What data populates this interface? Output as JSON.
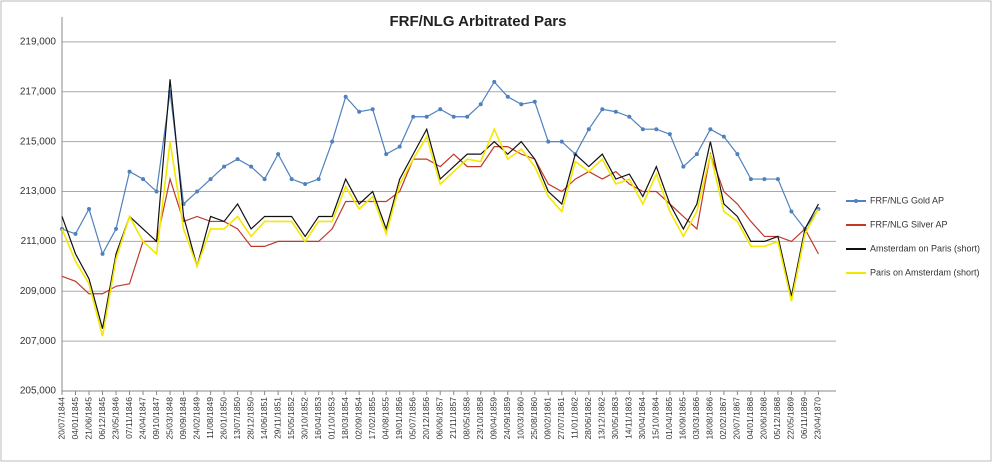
{
  "chart_data": {
    "type": "line",
    "title": "FRF/NLG Arbitrated Pars",
    "categories": [
      "20/07/1844",
      "04/01/1845",
      "21/06/1845",
      "06/12/1845",
      "23/05/1846",
      "07/11/1846",
      "24/04/1847",
      "09/10/1847",
      "25/03/1848",
      "09/09/1848",
      "24/02/1849",
      "11/08/1849",
      "26/01/1850",
      "13/07/1850",
      "28/12/1850",
      "14/06/1851",
      "29/11/1851",
      "15/05/1852",
      "30/10/1852",
      "16/04/1853",
      "01/10/1853",
      "18/03/1854",
      "02/09/1854",
      "17/02/1855",
      "04/08/1855",
      "19/01/1856",
      "05/07/1856",
      "20/12/1856",
      "06/06/1857",
      "21/11/1857",
      "08/05/1858",
      "23/10/1858",
      "09/04/1859",
      "24/09/1859",
      "10/03/1860",
      "25/08/1860",
      "09/02/1861",
      "27/07/1861",
      "11/01/1862",
      "28/06/1862",
      "13/12/1862",
      "30/05/1863",
      "14/11/1863",
      "30/04/1864",
      "15/10/1864",
      "01/04/1865",
      "16/09/1865",
      "03/03/1866",
      "18/08/1866",
      "02/02/1867",
      "20/07/1867",
      "04/01/1868",
      "20/06/1868",
      "05/12/1868",
      "22/05/1869",
      "06/11/1869",
      "23/04/1870"
    ],
    "series": [
      {
        "name": "FRF/NLG Gold AP",
        "color": "#4f81bd",
        "markers": true,
        "values": [
          211.5,
          211.3,
          212.3,
          210.5,
          211.5,
          213.8,
          213.5,
          213,
          217,
          212.5,
          213,
          213.5,
          214,
          214.3,
          214,
          213.5,
          214.5,
          213.5,
          213.3,
          213.5,
          215,
          216.8,
          216.2,
          216.3,
          214.5,
          214.8,
          216,
          216,
          216.3,
          216,
          216,
          216.5,
          217.4,
          216.8,
          216.5,
          216.6,
          215,
          215,
          214.5,
          215.5,
          216.3,
          216.2,
          216,
          215.5,
          215.5,
          215.3,
          214,
          214.5,
          215.5,
          215.2,
          214.5,
          213.5,
          213.5,
          213.5,
          212.2,
          211.5,
          212.3
        ]
      },
      {
        "name": "FRF/NLG Silver AP",
        "color": "#c0392b",
        "markers": false,
        "values": [
          209.6,
          209.4,
          208.9,
          208.9,
          209.2,
          209.3,
          211,
          211,
          213.5,
          211.8,
          212,
          211.8,
          211.8,
          211.5,
          210.8,
          210.8,
          211,
          211,
          211,
          211,
          211.5,
          212.6,
          212.6,
          212.6,
          212.6,
          213,
          214.3,
          214.3,
          214,
          214.5,
          214,
          214,
          214.8,
          214.8,
          214.5,
          214.3,
          213.3,
          213,
          213.5,
          213.8,
          213.5,
          213.8,
          213.3,
          213,
          213,
          212.5,
          212,
          211.5,
          214.5,
          213,
          212.5,
          211.8,
          211.2,
          211.2,
          211,
          211.5,
          210.5
        ]
      },
      {
        "name": "Amsterdam on Paris (short)",
        "color": "#111111",
        "markers": false,
        "values": [
          212,
          210.5,
          209.5,
          207.5,
          210.5,
          212,
          211.5,
          211,
          217.5,
          212,
          210,
          212,
          211.8,
          212.5,
          211.5,
          212,
          212,
          212,
          211.2,
          212,
          212,
          213.5,
          212.5,
          213,
          211.5,
          213.5,
          214.5,
          215.5,
          213.5,
          214,
          214.5,
          214.5,
          215,
          214.5,
          215,
          214.3,
          213,
          212.5,
          214.5,
          214,
          214.5,
          213.5,
          213.7,
          212.8,
          214,
          212.5,
          211.5,
          212.5,
          215,
          212.5,
          212,
          211,
          211,
          211.2,
          208.8,
          211.5,
          212.5
        ]
      },
      {
        "name": "Paris on Amsterdam (short)",
        "color": "#f5e800",
        "markers": false,
        "values": [
          211.5,
          210.2,
          209.3,
          207.2,
          210.3,
          212,
          211,
          210.5,
          215,
          211.5,
          210,
          211.5,
          211.5,
          212,
          211.2,
          211.8,
          211.8,
          211.8,
          211,
          211.8,
          211.8,
          213.2,
          212.3,
          212.8,
          211.3,
          213.3,
          214.3,
          215.2,
          213.3,
          213.8,
          214.3,
          214.2,
          215.5,
          214.3,
          214.7,
          214,
          212.8,
          212.2,
          214.2,
          213.8,
          214.3,
          213.3,
          213.5,
          212.5,
          213.7,
          212.2,
          211.2,
          212.2,
          214.5,
          212.2,
          211.8,
          210.8,
          210.8,
          211,
          208.6,
          211.3,
          212.3
        ]
      }
    ],
    "ylim": [
      205,
      220
    ],
    "yticks": [
      {
        "value": 205,
        "label": "205,000"
      },
      {
        "value": 207,
        "label": "207,000"
      },
      {
        "value": 209,
        "label": "209,000"
      },
      {
        "value": 211,
        "label": "211,000"
      },
      {
        "value": 213,
        "label": "213,000"
      },
      {
        "value": 215,
        "label": "215,000"
      },
      {
        "value": 217,
        "label": "217,000"
      },
      {
        "value": 219,
        "label": "219,000"
      }
    ],
    "grid": true,
    "legend": "right"
  }
}
